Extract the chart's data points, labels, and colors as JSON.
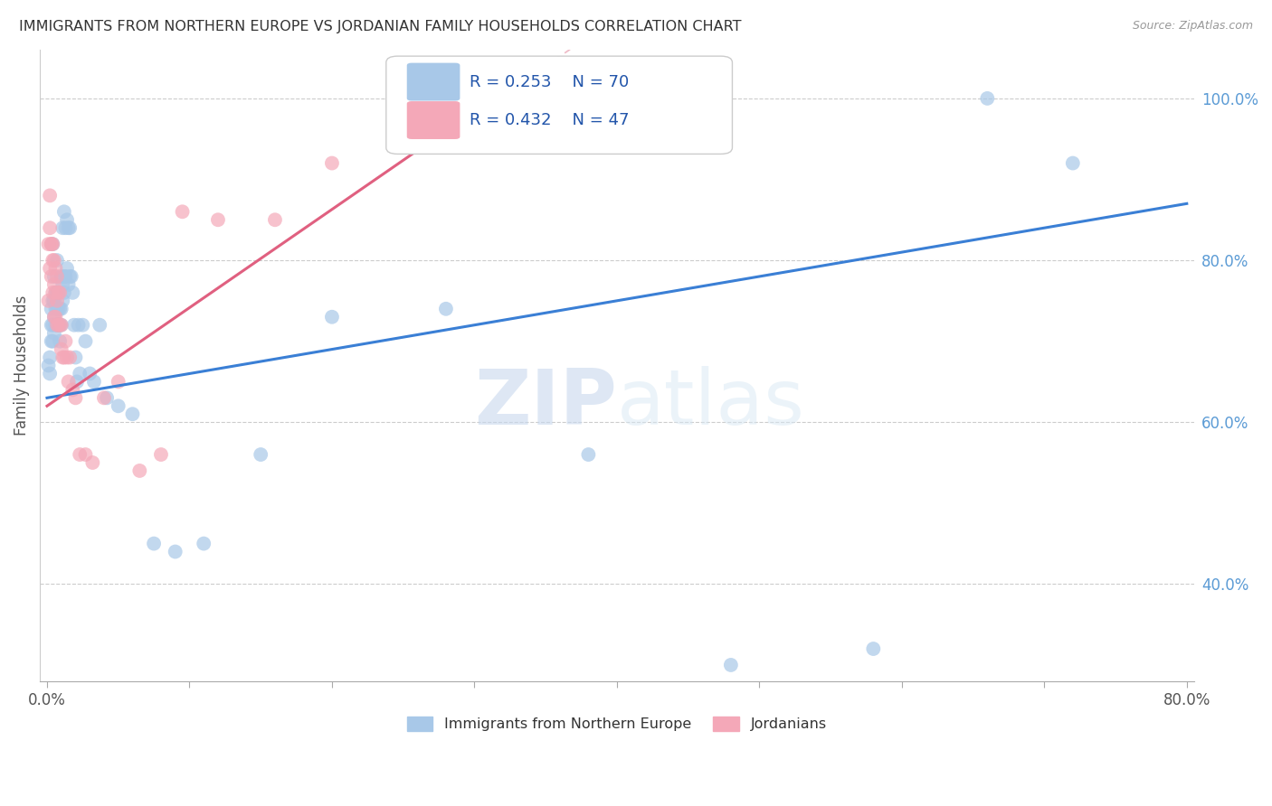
{
  "title": "IMMIGRANTS FROM NORTHERN EUROPE VS JORDANIAN FAMILY HOUSEHOLDS CORRELATION CHART",
  "source": "Source: ZipAtlas.com",
  "ylabel": "Family Households",
  "xlim": [
    -0.005,
    0.805
  ],
  "ylim": [
    0.28,
    1.06
  ],
  "xticks": [
    0.0,
    0.1,
    0.2,
    0.3,
    0.4,
    0.5,
    0.6,
    0.7,
    0.8
  ],
  "xticklabels": [
    "0.0%",
    "",
    "",
    "",
    "",
    "",
    "",
    "",
    "80.0%"
  ],
  "yticks_right": [
    0.4,
    0.6,
    0.8,
    1.0
  ],
  "ytick_labels_right": [
    "40.0%",
    "60.0%",
    "80.0%",
    "100.0%"
  ],
  "blue_color": "#a8c8e8",
  "pink_color": "#f4a8b8",
  "blue_line_color": "#3a7fd5",
  "pink_line_color": "#e06080",
  "pink_dash_color": "#e8a0b0",
  "watermark_zip": "ZIP",
  "watermark_atlas": "atlas",
  "legend_r_blue": "R = 0.253",
  "legend_n_blue": "N = 70",
  "legend_r_pink": "R = 0.432",
  "legend_n_pink": "N = 47",
  "legend_label_blue": "Immigrants from Northern Europe",
  "legend_label_pink": "Jordanians",
  "blue_trend": [
    0.0,
    0.8,
    0.63,
    0.87
  ],
  "pink_trend_solid": [
    0.0,
    0.28,
    0.62,
    0.96
  ],
  "pink_trend_dash": [
    0.0,
    0.8,
    0.62,
    1.58
  ],
  "blue_x": [
    0.001,
    0.002,
    0.002,
    0.003,
    0.003,
    0.003,
    0.004,
    0.004,
    0.004,
    0.004,
    0.005,
    0.005,
    0.005,
    0.005,
    0.006,
    0.006,
    0.006,
    0.007,
    0.007,
    0.007,
    0.007,
    0.008,
    0.008,
    0.008,
    0.009,
    0.009,
    0.009,
    0.01,
    0.01,
    0.01,
    0.011,
    0.011,
    0.011,
    0.012,
    0.012,
    0.012,
    0.013,
    0.013,
    0.014,
    0.014,
    0.015,
    0.015,
    0.016,
    0.016,
    0.017,
    0.018,
    0.019,
    0.02,
    0.021,
    0.022,
    0.023,
    0.025,
    0.027,
    0.03,
    0.033,
    0.037,
    0.042,
    0.05,
    0.06,
    0.075,
    0.09,
    0.11,
    0.15,
    0.2,
    0.28,
    0.38,
    0.48,
    0.58,
    0.66,
    0.72
  ],
  "blue_y": [
    0.67,
    0.66,
    0.68,
    0.7,
    0.72,
    0.74,
    0.7,
    0.72,
    0.75,
    0.82,
    0.71,
    0.73,
    0.75,
    0.78,
    0.72,
    0.74,
    0.76,
    0.72,
    0.74,
    0.76,
    0.8,
    0.72,
    0.74,
    0.76,
    0.7,
    0.72,
    0.74,
    0.72,
    0.74,
    0.78,
    0.75,
    0.77,
    0.84,
    0.76,
    0.78,
    0.86,
    0.78,
    0.84,
    0.79,
    0.85,
    0.77,
    0.84,
    0.78,
    0.84,
    0.78,
    0.76,
    0.72,
    0.68,
    0.65,
    0.72,
    0.66,
    0.72,
    0.7,
    0.66,
    0.65,
    0.72,
    0.63,
    0.62,
    0.61,
    0.45,
    0.44,
    0.45,
    0.56,
    0.73,
    0.74,
    0.56,
    0.3,
    0.32,
    1.0,
    0.92
  ],
  "pink_x": [
    0.001,
    0.001,
    0.002,
    0.002,
    0.002,
    0.003,
    0.003,
    0.003,
    0.004,
    0.004,
    0.004,
    0.005,
    0.005,
    0.005,
    0.006,
    0.006,
    0.006,
    0.007,
    0.007,
    0.007,
    0.008,
    0.008,
    0.009,
    0.009,
    0.01,
    0.01,
    0.011,
    0.012,
    0.013,
    0.014,
    0.015,
    0.016,
    0.018,
    0.02,
    0.023,
    0.027,
    0.032,
    0.04,
    0.05,
    0.065,
    0.08,
    0.095,
    0.12,
    0.16,
    0.2,
    0.26,
    0.31
  ],
  "pink_y": [
    0.75,
    0.82,
    0.84,
    0.88,
    0.79,
    0.82,
    0.78,
    0.82,
    0.8,
    0.76,
    0.82,
    0.8,
    0.77,
    0.73,
    0.79,
    0.76,
    0.73,
    0.78,
    0.75,
    0.72,
    0.76,
    0.72,
    0.76,
    0.72,
    0.72,
    0.69,
    0.68,
    0.68,
    0.7,
    0.68,
    0.65,
    0.68,
    0.64,
    0.63,
    0.56,
    0.56,
    0.55,
    0.63,
    0.65,
    0.54,
    0.56,
    0.86,
    0.85,
    0.85,
    0.92,
    0.96,
    0.96
  ],
  "grid_color": "#cccccc",
  "title_color": "#333333",
  "right_label_color": "#5b9bd5",
  "bg_color": "#ffffff"
}
